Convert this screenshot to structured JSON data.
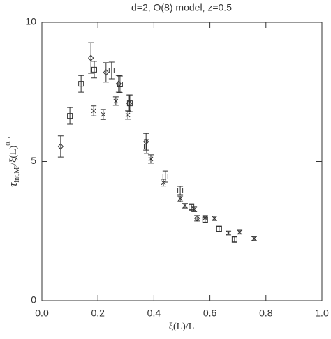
{
  "chart_data": {
    "type": "scatter",
    "title": "d=2, O(8) model, z=0.5",
    "x_label": "ξ(L)/L",
    "y_label": {
      "symbol": "τ",
      "subscript": "int,M²",
      "text": "/ξ(L)",
      "superscript": "0.5"
    },
    "xlim": [
      0,
      1
    ],
    "ylim": [
      0,
      10
    ],
    "xticks": [
      {
        "value": 0,
        "label": "0.0"
      },
      0.2,
      0.4,
      0.6,
      0.8,
      {
        "value": 1,
        "label": "1.0"
      }
    ],
    "yticks": [
      0,
      5,
      10
    ],
    "grid": false,
    "series": [
      {
        "marker": "diamond",
        "color": "#333333",
        "x": [
          0.067,
          0.175,
          0.229,
          0.274,
          0.312,
          0.372,
          0.554
        ],
        "values": [
          5.54,
          8.72,
          8.2,
          7.79,
          7.09,
          5.71,
          2.96
        ],
        "errors": [
          0.38,
          0.55,
          0.35,
          0.3,
          0.3,
          0.3,
          0.1
        ]
      },
      {
        "marker": "square",
        "color": "#333333",
        "x": [
          0.1,
          0.14,
          0.187,
          0.249,
          0.279,
          0.314,
          0.374,
          0.441,
          0.494,
          0.534,
          0.583,
          0.633,
          0.688
        ],
        "values": [
          6.64,
          7.79,
          8.3,
          8.27,
          7.77,
          7.09,
          5.54,
          4.46,
          3.96,
          3.36,
          2.91,
          2.58,
          2.2
        ],
        "errors": [
          0.3,
          0.3,
          0.3,
          0.3,
          0.3,
          0.3,
          0.25,
          0.2,
          0.15,
          0.12,
          0.1,
          0.1,
          0.1
        ]
      },
      {
        "marker": "x",
        "color": "#333333",
        "x": [
          0.185,
          0.219,
          0.264,
          0.307,
          0.389,
          0.434,
          0.494,
          0.511,
          0.544,
          0.583,
          0.616,
          0.666,
          0.706,
          0.758
        ],
        "values": [
          6.82,
          6.69,
          7.17,
          6.67,
          5.09,
          4.24,
          3.66,
          3.41,
          3.28,
          2.98,
          2.96,
          2.43,
          2.46,
          2.23
        ],
        "errors": [
          0.18,
          0.18,
          0.15,
          0.15,
          0.15,
          0.12,
          0.1,
          0.08,
          0.08,
          0.08,
          0.08,
          0.07,
          0.07,
          0.07
        ]
      }
    ]
  }
}
